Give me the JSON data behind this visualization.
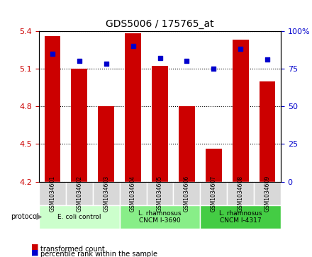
{
  "title": "GDS5006 / 175765_at",
  "samples": [
    "GSM1034601",
    "GSM1034602",
    "GSM1034603",
    "GSM1034604",
    "GSM1034605",
    "GSM1034606",
    "GSM1034607",
    "GSM1034608",
    "GSM1034609"
  ],
  "bar_values": [
    5.36,
    5.1,
    4.8,
    5.38,
    5.12,
    4.8,
    4.46,
    5.33,
    5.0
  ],
  "percentile_values": [
    85,
    80,
    78,
    90,
    82,
    80,
    75,
    88,
    81
  ],
  "ylim": [
    4.2,
    5.4
  ],
  "y2lim": [
    0,
    100
  ],
  "yticks": [
    4.2,
    4.5,
    4.8,
    5.1,
    5.4
  ],
  "y2ticks": [
    0,
    25,
    50,
    75,
    100
  ],
  "bar_color": "#cc0000",
  "percentile_color": "#0000cc",
  "bar_bottom": 4.2,
  "bar_width": 0.6,
  "protocols": [
    {
      "label": "E. coli control",
      "start": 0,
      "end": 3,
      "color": "#ccffcc"
    },
    {
      "label": "L. rhamnosus\nCNCM I-3690",
      "start": 3,
      "end": 6,
      "color": "#88ee88"
    },
    {
      "label": "L. rhamnosus\nCNCM I-4317",
      "start": 6,
      "end": 9,
      "color": "#44cc44"
    }
  ],
  "legend_bar_label": "transformed count",
  "legend_pct_label": "percentile rank within the sample",
  "protocol_label": "protocol",
  "ytick_color": "#cc0000",
  "y2tick_color": "#0000cc",
  "grid_color": "#000000",
  "background_color": "#ffffff",
  "plot_bg_color": "#ffffff",
  "xlabel_bg": "#dddddd"
}
